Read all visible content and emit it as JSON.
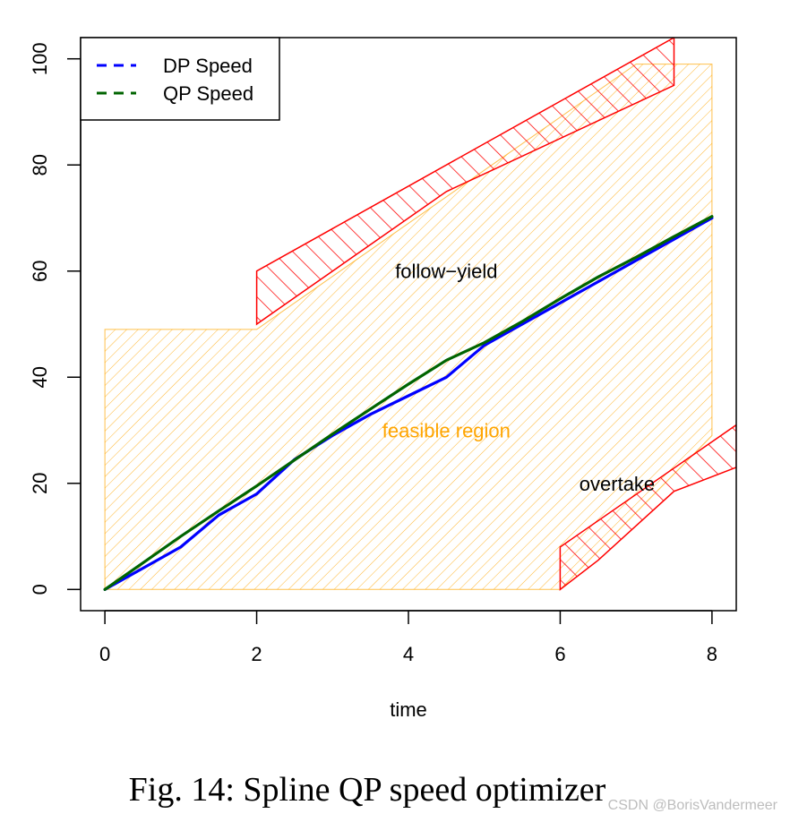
{
  "chart_data": {
    "type": "line",
    "title": "",
    "xlabel": "time",
    "ylabel": "",
    "xlim": [
      -0.32,
      8.32
    ],
    "ylim": [
      -4,
      104
    ],
    "xticks": [
      0,
      2,
      4,
      6,
      8
    ],
    "xtick_labels": [
      "0",
      "2",
      "4",
      "6",
      "8"
    ],
    "yticks": [
      0,
      20,
      40,
      60,
      80,
      100
    ],
    "ytick_labels": [
      "0",
      "20",
      "40",
      "60",
      "80",
      "100"
    ],
    "grid": false,
    "legend_position": "top-left",
    "series": [
      {
        "name": "DP Speed",
        "color": "#0000ff",
        "style": "dashed",
        "x": [
          0,
          0.5,
          1,
          1.5,
          2,
          2.5,
          3,
          3.5,
          4,
          4.5,
          5,
          5.5,
          6,
          6.5,
          7,
          7.5,
          8
        ],
        "y": [
          0,
          4,
          8,
          14,
          18,
          24.5,
          29,
          33,
          36.5,
          40,
          46,
          50,
          54,
          58,
          62,
          66,
          70
        ]
      },
      {
        "name": "QP Speed",
        "color": "#006400",
        "style": "dashed",
        "x": [
          0,
          0.5,
          1,
          1.5,
          2,
          2.5,
          3,
          3.5,
          4,
          4.5,
          5,
          5.5,
          6,
          6.5,
          7,
          7.5,
          8
        ],
        "y": [
          0,
          5,
          10,
          14.8,
          19.5,
          24.4,
          29.3,
          34,
          38.7,
          43.2,
          46.5,
          50.5,
          54.8,
          58.9,
          62.6,
          66.5,
          70.3
        ]
      }
    ],
    "regions": [
      {
        "name": "feasible region",
        "color": "#ffa500",
        "polygon": [
          [
            0,
            0
          ],
          [
            6,
            0
          ],
          [
            8,
            29
          ],
          [
            8,
            99
          ],
          [
            7,
            99
          ],
          [
            2,
            49
          ],
          [
            0,
            49
          ]
        ]
      },
      {
        "name": "follow-yield obstacle",
        "color": "#ff0000",
        "polygon": [
          [
            2,
            50
          ],
          [
            2,
            60
          ],
          [
            3,
            68
          ],
          [
            7.5,
            104
          ],
          [
            7.5,
            95
          ],
          [
            4.5,
            75
          ],
          [
            2.5,
            55
          ]
        ]
      },
      {
        "name": "overtake obstacle",
        "color": "#ff0000",
        "polygon": [
          [
            6,
            0
          ],
          [
            6,
            8
          ],
          [
            8.32,
            31
          ],
          [
            8.32,
            23
          ],
          [
            7.5,
            18.5
          ],
          [
            6.5,
            5.5
          ]
        ]
      }
    ],
    "annotations": [
      {
        "text": "follow−yield",
        "x": 4.5,
        "y": 60,
        "color": "#000000"
      },
      {
        "text": "feasible region",
        "x": 4.5,
        "y": 30,
        "color": "#ffa500"
      },
      {
        "text": "overtake",
        "x": 6.75,
        "y": 20,
        "color": "#000000"
      }
    ]
  },
  "caption": "Fig. 14: Spline QP speed optimizer",
  "watermark": "CSDN @BorisVandermeer"
}
